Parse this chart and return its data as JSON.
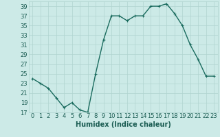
{
  "x": [
    0,
    1,
    2,
    3,
    4,
    5,
    6,
    7,
    8,
    9,
    10,
    11,
    12,
    13,
    14,
    15,
    16,
    17,
    18,
    19,
    20,
    21,
    22,
    23
  ],
  "y": [
    24,
    23,
    22,
    20,
    18,
    19,
    17.5,
    17,
    25,
    32,
    37,
    37,
    36,
    37,
    37,
    39,
    39,
    39.5,
    37.5,
    35,
    31,
    28,
    24.5,
    24.5
  ],
  "line_color": "#1a6b5e",
  "marker": "+",
  "bg_color": "#cceae7",
  "grid_color": "#b0d4d0",
  "xlabel": "Humidex (Indice chaleur)",
  "ylim": [
    17,
    40
  ],
  "xlim": [
    -0.5,
    23.5
  ],
  "yticks": [
    17,
    19,
    21,
    23,
    25,
    27,
    29,
    31,
    33,
    35,
    37,
    39
  ],
  "xticks": [
    0,
    1,
    2,
    3,
    4,
    5,
    6,
    7,
    8,
    9,
    10,
    11,
    12,
    13,
    14,
    15,
    16,
    17,
    18,
    19,
    20,
    21,
    22,
    23
  ],
  "xtick_labels": [
    "0",
    "1",
    "2",
    "3",
    "4",
    "5",
    "6",
    "7",
    "8",
    "9",
    "10",
    "11",
    "12",
    "13",
    "14",
    "15",
    "16",
    "17",
    "18",
    "19",
    "20",
    "21",
    "22",
    "23"
  ],
  "tick_label_color": "#1a5c52",
  "xlabel_fontsize": 7,
  "tick_fontsize": 6,
  "line_width": 1.0,
  "marker_size": 3.5,
  "marker_edge_width": 0.8
}
